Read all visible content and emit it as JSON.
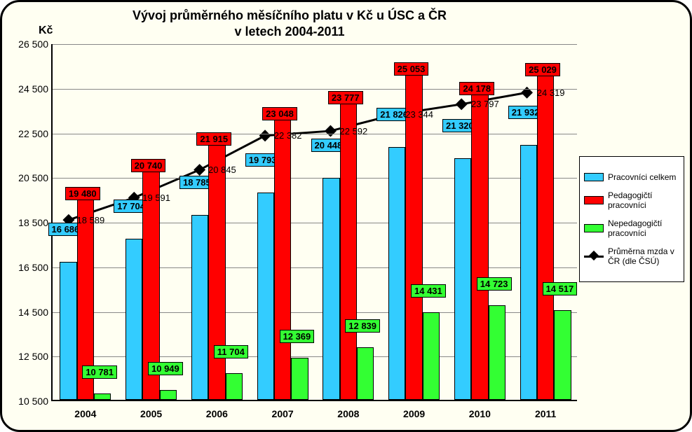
{
  "title_line1": "Vývoj průměrného měsíčního platu v Kč u ÚSC a ČR",
  "title_line2": "v letech 2004-2011",
  "y_axis_unit": "Kč",
  "chart": {
    "type": "bar+line",
    "categories": [
      "2004",
      "2005",
      "2006",
      "2007",
      "2008",
      "2009",
      "2010",
      "2011"
    ],
    "ylim": [
      10500,
      26500
    ],
    "ytick_step": 2000,
    "yticks": [
      10500,
      12500,
      14500,
      16500,
      18500,
      20500,
      22500,
      24500,
      26500
    ],
    "ytick_labels": [
      "10 500",
      "12 500",
      "14 500",
      "16 500",
      "18 500",
      "20 500",
      "22 500",
      "24 500",
      "26 500"
    ],
    "background_color": "#fffff2",
    "grid_color": "#888888",
    "bar_group_width": 0.78,
    "series": {
      "blue": {
        "label": "Pracovníci celkem",
        "color": "#33ccff",
        "values": [
          16686,
          17704,
          18785,
          19793,
          20448,
          21826,
          21320,
          21932
        ],
        "value_labels": [
          "16 686",
          "17 704",
          "18 785",
          "19 793",
          "20 448",
          "21 826",
          "21 320",
          "21 932"
        ]
      },
      "red": {
        "label": "Pedagogičtí pracovníci",
        "color": "#ff0000",
        "values": [
          19480,
          20740,
          21915,
          23048,
          23777,
          25053,
          24178,
          25029
        ],
        "value_labels": [
          "19 480",
          "20 740",
          "21 915",
          "23 048",
          "23 777",
          "25 053",
          "24 178",
          "25 029"
        ]
      },
      "green": {
        "label": "Nepedagogičtí pracovníci",
        "color": "#33ff33",
        "values": [
          10781,
          10949,
          11704,
          12369,
          12839,
          14431,
          14723,
          14517
        ],
        "value_labels": [
          "10 781",
          "10 949",
          "11 704",
          "12 369",
          "12 839",
          "14 431",
          "14 723",
          "14 517"
        ]
      }
    },
    "line": {
      "label": "Průměrna mzda v ČR (dle ČSÚ)",
      "color": "#000000",
      "width": 3,
      "marker": "diamond",
      "marker_size": 12,
      "values": [
        18589,
        19591,
        20845,
        22382,
        22592,
        23344,
        23797,
        24319
      ],
      "value_labels": [
        "18 589",
        "19 591",
        "20 845",
        "22 382",
        "22 592",
        "23 344",
        "23 797",
        "24 319"
      ]
    }
  },
  "legend": {
    "items": [
      {
        "kind": "swatch",
        "color": "#33ccff",
        "text": "Pracovníci celkem"
      },
      {
        "kind": "swatch",
        "color": "#ff0000",
        "text": "Pedagogičtí pracovníci"
      },
      {
        "kind": "swatch",
        "color": "#33ff33",
        "text": "Nepedagogičtí pracovníci"
      },
      {
        "kind": "line",
        "color": "#000000",
        "text": "Průměrna mzda v ČR (dle ČSÚ)"
      }
    ]
  }
}
